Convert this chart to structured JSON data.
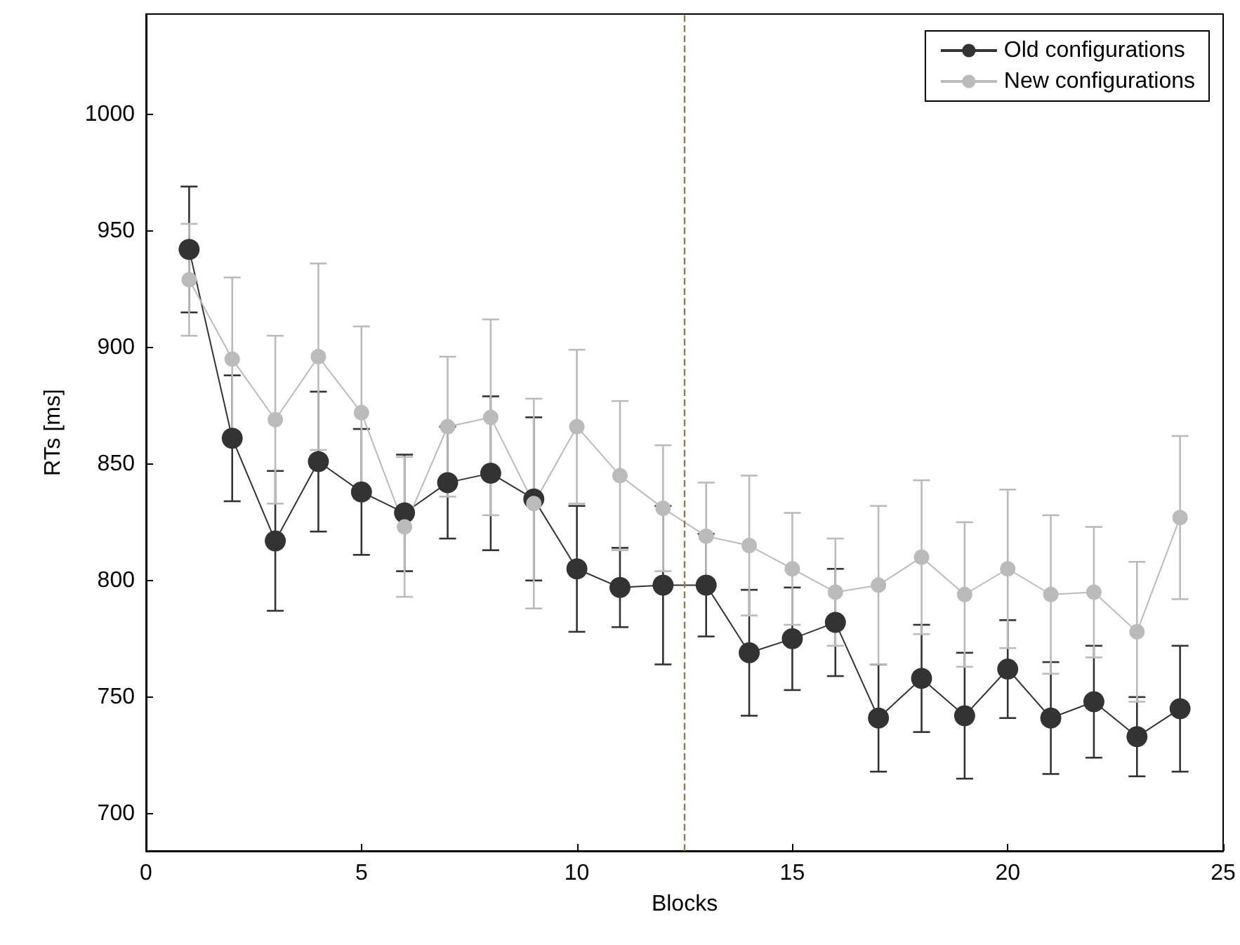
{
  "chart_data": {
    "type": "line",
    "xlabel": "Blocks",
    "ylabel": "RTs [ms]",
    "x": [
      1,
      2,
      3,
      4,
      5,
      6,
      7,
      8,
      9,
      10,
      11,
      12,
      13,
      14,
      15,
      16,
      17,
      18,
      19,
      20,
      21,
      22,
      23,
      24
    ],
    "series": [
      {
        "name": "Old configurations",
        "color": "#333333",
        "values": [
          942,
          861,
          817,
          851,
          838,
          829,
          842,
          846,
          835,
          805,
          797,
          798,
          798,
          769,
          775,
          782,
          741,
          758,
          742,
          762,
          741,
          748,
          733,
          745
        ],
        "errors": [
          27,
          27,
          30,
          30,
          27,
          25,
          24,
          33,
          35,
          27,
          17,
          34,
          22,
          27,
          22,
          23,
          23,
          23,
          27,
          21,
          24,
          24,
          17,
          27
        ]
      },
      {
        "name": "New configurations",
        "color": "#bbbbbb",
        "values": [
          929,
          895,
          869,
          896,
          872,
          823,
          866,
          870,
          833,
          866,
          845,
          831,
          819,
          815,
          805,
          795,
          798,
          810,
          794,
          805,
          794,
          795,
          778,
          827
        ],
        "errors": [
          24,
          35,
          36,
          40,
          37,
          30,
          30,
          42,
          45,
          33,
          32,
          27,
          23,
          30,
          24,
          23,
          34,
          33,
          31,
          34,
          34,
          28,
          30,
          35
        ]
      }
    ],
    "xlim": [
      0,
      25
    ],
    "xticks": [
      0,
      5,
      10,
      15,
      20,
      25
    ],
    "ylim": [
      684,
      1043
    ],
    "yticks": [
      700,
      750,
      800,
      850,
      900,
      950,
      1000
    ],
    "ref_lines": [
      {
        "axis": "x",
        "value": 12.5,
        "color": "#8b7d50",
        "line_style": "dashed"
      }
    ],
    "legend": "top right",
    "marker": "circle",
    "line_style": "solid",
    "grid": false
  }
}
